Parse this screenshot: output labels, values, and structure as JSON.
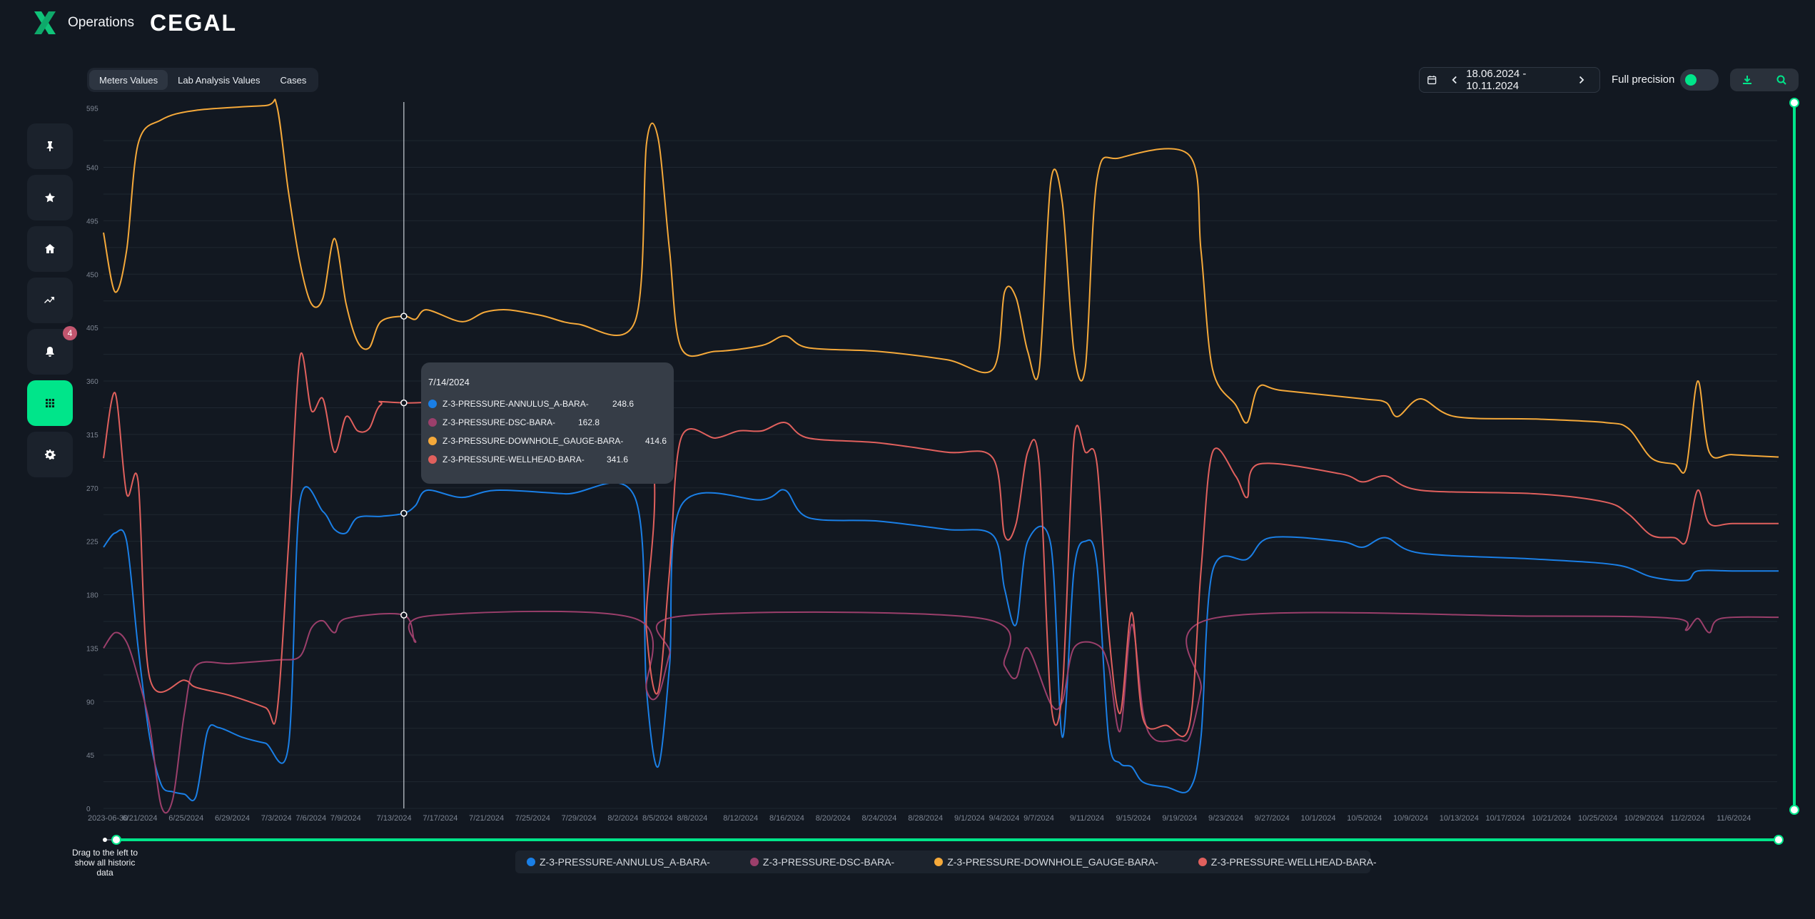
{
  "header": {
    "app_title": "Operations",
    "brand": "CEGAL",
    "logo_icon": "x-logo-icon"
  },
  "sidebar": {
    "items": [
      {
        "name": "pin",
        "icon": "pin-icon"
      },
      {
        "name": "favorites",
        "icon": "star-icon"
      },
      {
        "name": "home",
        "icon": "home-icon"
      },
      {
        "name": "trends",
        "icon": "trend-icon"
      },
      {
        "name": "notifications",
        "icon": "bell-icon",
        "badge": "4"
      },
      {
        "name": "apps",
        "icon": "grid-icon",
        "active": true
      },
      {
        "name": "settings",
        "icon": "gear-icon"
      }
    ]
  },
  "tabs": [
    {
      "label": "Meters Values",
      "active": true
    },
    {
      "label": "Lab Analysis Values",
      "active": false
    },
    {
      "label": "Cases",
      "active": false
    }
  ],
  "toolbar": {
    "date_range": "18.06.2024 - 10.11.2024",
    "full_precision_label": "Full precision",
    "full_precision_on": true,
    "icons": [
      "calendar-icon",
      "chevron-left-icon",
      "chevron-right-icon",
      "download-icon",
      "zoom-icon"
    ]
  },
  "range_slider": {
    "hint": "Drag to the left to show all historic data"
  },
  "tooltip": {
    "date": "7/14/2024",
    "rows": [
      {
        "name": "Z-3-PRESSURE-ANNULUS_A-BARA-",
        "value": "248.6",
        "color": "#1a7fe6"
      },
      {
        "name": "Z-3-PRESSURE-DSC-BARA-",
        "value": "162.8",
        "color": "#9b3f6b"
      },
      {
        "name": "Z-3-PRESSURE-DOWNHOLE_GAUGE-BARA-",
        "value": "414.6",
        "color": "#f5a93a"
      },
      {
        "name": "Z-3-PRESSURE-WELLHEAD-BARA-",
        "value": "341.6",
        "color": "#e0605d"
      }
    ]
  },
  "chart_data": {
    "type": "line",
    "x_ticks": [
      "2023-06-30",
      "6/21/2024",
      "6/25/2024",
      "6/29/2024",
      "7/3/2024",
      "7/6/2024",
      "7/9/2024",
      "7/13/2024",
      "7/17/2024",
      "7/21/2024",
      "7/25/2024",
      "7/29/2024",
      "8/2/2024",
      "8/5/2024",
      "8/8/2024",
      "8/12/2024",
      "8/16/2024",
      "8/20/2024",
      "8/24/2024",
      "8/28/2024",
      "9/1/2024",
      "9/4/2024",
      "9/7/2024",
      "9/11/2024",
      "9/15/2024",
      "9/19/2024",
      "9/23/2024",
      "9/27/2024",
      "10/1/2024",
      "10/5/2024",
      "10/9/2024",
      "10/13/2024",
      "10/17/2024",
      "10/21/2024",
      "10/25/2024",
      "10/29/2024",
      "11/2/2024",
      "11/6/2024"
    ],
    "y_ticks": [
      0,
      45,
      90,
      135,
      180,
      225,
      270,
      315,
      360,
      405,
      450,
      495,
      540,
      595
    ],
    "ylim": [
      0,
      595
    ],
    "x_start": "6/18/2024",
    "x_end": "11/10/2024",
    "grid": true,
    "legend_position": "bottom",
    "cursor_date": "7/14/2024",
    "series": [
      {
        "name": "Z-3-PRESSURE-ANNULUS_A-BARA-",
        "color": "#1a7fe6",
        "points": [
          [
            "6/18/2024",
            220
          ],
          [
            "6/19/2024",
            232
          ],
          [
            "6/20/2024",
            225
          ],
          [
            "6/21/2024",
            135
          ],
          [
            "6/22/2024",
            60
          ],
          [
            "6/23/2024",
            20
          ],
          [
            "6/24/2024",
            14
          ],
          [
            "6/25/2024",
            12
          ],
          [
            "6/26/2024",
            10
          ],
          [
            "6/27/2024",
            65
          ],
          [
            "6/28/2024",
            68
          ],
          [
            "6/30/2024",
            60
          ],
          [
            "7/2/2024",
            55
          ],
          [
            "7/4/2024",
            52
          ],
          [
            "7/5/2024",
            258
          ],
          [
            "7/7/2024",
            250
          ],
          [
            "7/8/2024",
            235
          ],
          [
            "7/9/2024",
            232
          ],
          [
            "7/10/2024",
            245
          ],
          [
            "7/12/2024",
            246
          ],
          [
            "7/14/2024",
            248.6
          ],
          [
            "7/15/2024",
            255
          ],
          [
            "7/16/2024",
            268
          ],
          [
            "7/19/2024",
            262
          ],
          [
            "7/22/2024",
            268
          ],
          [
            "7/28/2024",
            265
          ],
          [
            "8/3/2024",
            262
          ],
          [
            "8/4/2024",
            100
          ],
          [
            "8/5/2024",
            35
          ],
          [
            "8/6/2024",
            120
          ],
          [
            "8/7/2024",
            255
          ],
          [
            "8/14/2024",
            260
          ],
          [
            "8/16/2024",
            268
          ],
          [
            "8/18/2024",
            245
          ],
          [
            "8/24/2024",
            242
          ],
          [
            "8/30/2024",
            235
          ],
          [
            "9/3/2024",
            230
          ],
          [
            "9/4/2024",
            185
          ],
          [
            "9/5/2024",
            155
          ],
          [
            "9/6/2024",
            225
          ],
          [
            "9/8/2024",
            222
          ],
          [
            "9/9/2024",
            60
          ],
          [
            "9/10/2024",
            200
          ],
          [
            "9/11/2024",
            225
          ],
          [
            "9/12/2024",
            205
          ],
          [
            "9/13/2024",
            60
          ],
          [
            "9/14/2024",
            38
          ],
          [
            "9/15/2024",
            35
          ],
          [
            "9/16/2024",
            22
          ],
          [
            "9/18/2024",
            18
          ],
          [
            "9/20/2024",
            16
          ],
          [
            "9/21/2024",
            60
          ],
          [
            "9/22/2024",
            200
          ],
          [
            "9/25/2024",
            210
          ],
          [
            "9/27/2024",
            228
          ],
          [
            "10/3/2024",
            225
          ],
          [
            "10/5/2024",
            220
          ],
          [
            "10/7/2024",
            228
          ],
          [
            "10/10/2024",
            215
          ],
          [
            "10/20/2024",
            210
          ],
          [
            "10/27/2024",
            205
          ],
          [
            "10/30/2024",
            195
          ],
          [
            "11/2/2024",
            192
          ],
          [
            "11/3/2024",
            200
          ],
          [
            "11/6/2024",
            200
          ],
          [
            "11/10/2024",
            200
          ]
        ]
      },
      {
        "name": "Z-3-PRESSURE-DSC-BARA-",
        "color": "#9b3f6b",
        "points": [
          [
            "6/18/2024",
            135
          ],
          [
            "6/19/2024",
            148
          ],
          [
            "6/20/2024",
            140
          ],
          [
            "6/21/2024",
            110
          ],
          [
            "6/22/2024",
            70
          ],
          [
            "6/23/2024",
            2
          ],
          [
            "6/24/2024",
            8
          ],
          [
            "6/25/2024",
            80
          ],
          [
            "6/26/2024",
            120
          ],
          [
            "6/29/2024",
            122
          ],
          [
            "7/3/2024",
            125
          ],
          [
            "7/5/2024",
            128
          ],
          [
            "7/6/2024",
            152
          ],
          [
            "7/7/2024",
            158
          ],
          [
            "7/8/2024",
            148
          ],
          [
            "7/9/2024",
            160
          ],
          [
            "7/14/2024",
            162.8
          ],
          [
            "7/15/2024",
            140
          ],
          [
            "7/16/2024",
            162
          ],
          [
            "8/3/2024",
            160
          ],
          [
            "8/4/2024",
            100
          ],
          [
            "8/5/2024",
            95
          ],
          [
            "8/6/2024",
            130
          ],
          [
            "8/7/2024",
            162
          ],
          [
            "9/2/2024",
            160
          ],
          [
            "9/4/2024",
            120
          ],
          [
            "9/5/2024",
            110
          ],
          [
            "9/6/2024",
            135
          ],
          [
            "9/8/2024",
            88
          ],
          [
            "9/9/2024",
            90
          ],
          [
            "9/10/2024",
            135
          ],
          [
            "9/12/2024",
            138
          ],
          [
            "9/13/2024",
            120
          ],
          [
            "9/14/2024",
            65
          ],
          [
            "9/15/2024",
            155
          ],
          [
            "9/16/2024",
            80
          ],
          [
            "9/17/2024",
            58
          ],
          [
            "9/19/2024",
            58
          ],
          [
            "9/20/2024",
            60
          ],
          [
            "9/21/2024",
            100
          ],
          [
            "9/22/2024",
            160
          ],
          [
            "10/20/2024",
            162
          ],
          [
            "11/1/2024",
            160
          ],
          [
            "11/2/2024",
            150
          ],
          [
            "11/3/2024",
            160
          ],
          [
            "11/4/2024",
            148
          ],
          [
            "11/5/2024",
            160
          ],
          [
            "11/10/2024",
            161
          ]
        ]
      },
      {
        "name": "Z-3-PRESSURE-DOWNHOLE_GAUGE-BARA-",
        "color": "#f5a93a",
        "points": [
          [
            "6/18/2024",
            485
          ],
          [
            "6/19/2024",
            435
          ],
          [
            "6/20/2024",
            470
          ],
          [
            "6/21/2024",
            560
          ],
          [
            "6/23/2024",
            580
          ],
          [
            "6/26/2024",
            588
          ],
          [
            "7/2/2024",
            592
          ],
          [
            "7/3/2024",
            592
          ],
          [
            "7/4/2024",
            520
          ],
          [
            "7/5/2024",
            460
          ],
          [
            "7/6/2024",
            425
          ],
          [
            "7/7/2024",
            430
          ],
          [
            "7/8/2024",
            480
          ],
          [
            "7/9/2024",
            425
          ],
          [
            "7/10/2024",
            393
          ],
          [
            "7/11/2024",
            388
          ],
          [
            "7/12/2024",
            410
          ],
          [
            "7/14/2024",
            414.6
          ],
          [
            "7/15/2024",
            412
          ],
          [
            "7/16/2024",
            420
          ],
          [
            "7/19/2024",
            410
          ],
          [
            "7/21/2024",
            418
          ],
          [
            "7/23/2024",
            420
          ],
          [
            "7/26/2024",
            415
          ],
          [
            "7/29/2024",
            408
          ],
          [
            "8/3/2024",
            410
          ],
          [
            "8/4/2024",
            560
          ],
          [
            "8/5/2024",
            565
          ],
          [
            "8/6/2024",
            470
          ],
          [
            "8/7/2024",
            388
          ],
          [
            "8/10/2024",
            385
          ],
          [
            "8/14/2024",
            390
          ],
          [
            "8/16/2024",
            398
          ],
          [
            "8/18/2024",
            388
          ],
          [
            "8/24/2024",
            385
          ],
          [
            "8/30/2024",
            378
          ],
          [
            "9/3/2024",
            370
          ],
          [
            "9/4/2024",
            435
          ],
          [
            "9/5/2024",
            430
          ],
          [
            "9/6/2024",
            385
          ],
          [
            "9/7/2024",
            370
          ],
          [
            "9/8/2024",
            528
          ],
          [
            "9/9/2024",
            510
          ],
          [
            "9/10/2024",
            385
          ],
          [
            "9/11/2024",
            372
          ],
          [
            "9/12/2024",
            530
          ],
          [
            "9/14/2024",
            548
          ],
          [
            "9/20/2024",
            550
          ],
          [
            "9/21/2024",
            470
          ],
          [
            "9/22/2024",
            370
          ],
          [
            "9/24/2024",
            340
          ],
          [
            "9/25/2024",
            325
          ],
          [
            "9/26/2024",
            355
          ],
          [
            "9/28/2024",
            352
          ],
          [
            "10/5/2024",
            345
          ],
          [
            "10/7/2024",
            342
          ],
          [
            "10/8/2024",
            330
          ],
          [
            "10/10/2024",
            345
          ],
          [
            "10/13/2024",
            330
          ],
          [
            "10/20/2024",
            328
          ],
          [
            "10/26/2024",
            325
          ],
          [
            "10/28/2024",
            320
          ],
          [
            "10/30/2024",
            295
          ],
          [
            "11/1/2024",
            290
          ],
          [
            "11/2/2024",
            287
          ],
          [
            "11/3/2024",
            360
          ],
          [
            "11/4/2024",
            300
          ],
          [
            "11/6/2024",
            298
          ],
          [
            "11/10/2024",
            296
          ]
        ]
      },
      {
        "name": "Z-3-PRESSURE-WELLHEAD-BARA-",
        "color": "#e0605d",
        "points": [
          [
            "6/18/2024",
            295
          ],
          [
            "6/19/2024",
            350
          ],
          [
            "6/20/2024",
            265
          ],
          [
            "6/21/2024",
            275
          ],
          [
            "6/22/2024",
            110
          ],
          [
            "6/25/2024",
            108
          ],
          [
            "6/26/2024",
            102
          ],
          [
            "6/29/2024",
            95
          ],
          [
            "7/2/2024",
            85
          ],
          [
            "7/3/2024",
            80
          ],
          [
            "7/4/2024",
            220
          ],
          [
            "7/5/2024",
            380
          ],
          [
            "7/6/2024",
            335
          ],
          [
            "7/7/2024",
            345
          ],
          [
            "7/8/2024",
            300
          ],
          [
            "7/9/2024",
            330
          ],
          [
            "7/10/2024",
            318
          ],
          [
            "7/11/2024",
            320
          ],
          [
            "7/12/2024",
            340
          ],
          [
            "7/14/2024",
            341.6
          ],
          [
            "8/3/2024",
            330
          ],
          [
            "8/4/2024",
            150
          ],
          [
            "8/5/2024",
            98
          ],
          [
            "8/6/2024",
            200
          ],
          [
            "8/7/2024",
            312
          ],
          [
            "8/10/2024",
            312
          ],
          [
            "8/12/2024",
            318
          ],
          [
            "8/14/2024",
            318
          ],
          [
            "8/16/2024",
            325
          ],
          [
            "8/18/2024",
            312
          ],
          [
            "8/24/2024",
            308
          ],
          [
            "8/30/2024",
            300
          ],
          [
            "9/3/2024",
            295
          ],
          [
            "9/4/2024",
            230
          ],
          [
            "9/5/2024",
            240
          ],
          [
            "9/6/2024",
            300
          ],
          [
            "9/7/2024",
            290
          ],
          [
            "9/8/2024",
            90
          ],
          [
            "9/9/2024",
            100
          ],
          [
            "9/10/2024",
            310
          ],
          [
            "9/11/2024",
            300
          ],
          [
            "9/12/2024",
            290
          ],
          [
            "9/13/2024",
            150
          ],
          [
            "9/14/2024",
            80
          ],
          [
            "9/15/2024",
            165
          ],
          [
            "9/16/2024",
            75
          ],
          [
            "9/18/2024",
            70
          ],
          [
            "9/20/2024",
            70
          ],
          [
            "9/21/2024",
            200
          ],
          [
            "9/22/2024",
            300
          ],
          [
            "9/24/2024",
            280
          ],
          [
            "9/25/2024",
            262
          ],
          [
            "9/26/2024",
            290
          ],
          [
            "10/3/2024",
            282
          ],
          [
            "10/5/2024",
            275
          ],
          [
            "10/7/2024",
            280
          ],
          [
            "10/10/2024",
            268
          ],
          [
            "10/20/2024",
            265
          ],
          [
            "10/26/2024",
            258
          ],
          [
            "10/28/2024",
            248
          ],
          [
            "10/30/2024",
            230
          ],
          [
            "11/1/2024",
            228
          ],
          [
            "11/2/2024",
            225
          ],
          [
            "11/3/2024",
            268
          ],
          [
            "11/4/2024",
            240
          ],
          [
            "11/6/2024",
            240
          ],
          [
            "11/10/2024",
            240
          ]
        ]
      }
    ]
  }
}
